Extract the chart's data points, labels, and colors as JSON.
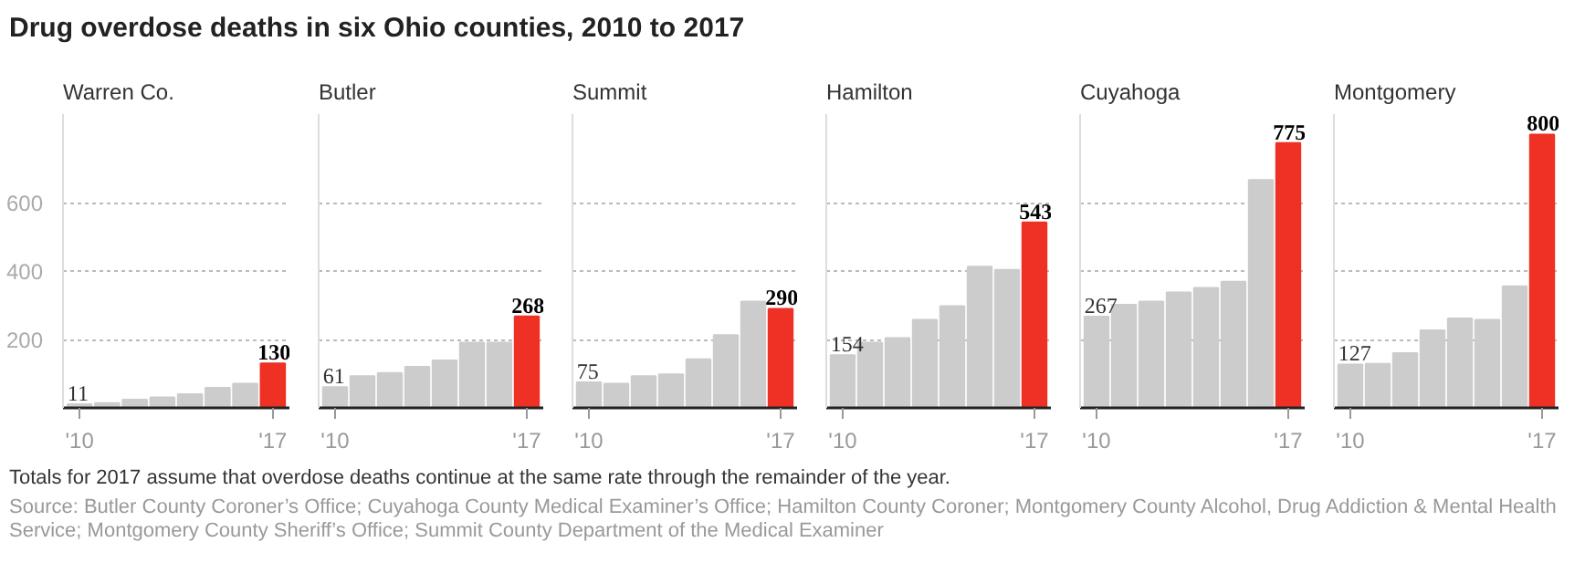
{
  "chart_data": [
    {
      "type": "bar",
      "title": "Drug overdose deaths in six Ohio counties, 2010 to 2017",
      "subtitle": "Warren Co.",
      "categories": [
        "'10",
        null,
        null,
        null,
        null,
        null,
        null,
        "'17"
      ],
      "values": [
        11,
        14,
        24,
        31,
        40,
        59,
        71,
        130
      ],
      "colors": [
        "#cccccc",
        "#cccccc",
        "#cccccc",
        "#cccccc",
        "#cccccc",
        "#cccccc",
        "#cccccc",
        "#ee3124"
      ],
      "value_labels": [
        "11",
        null,
        null,
        null,
        null,
        null,
        null,
        "130"
      ],
      "ylim": [
        0,
        860
      ],
      "yticks": [
        200,
        400,
        600
      ],
      "grid": "y",
      "annotations": [
        "Totals for 2017 assume that overdose deaths continue at the same rate through the remainder of the year.",
        "Source: Butler County Coroner’s Office; Cuyahoga County Medical Examiner’s Office; Hamilton County Coroner; Montgomery County Alcohol, Drug Addiction & Mental Health Service; Montgomery County Sheriff’s Office; Summit County Department of the Medical Examiner"
      ]
    },
    {
      "type": "bar",
      "subtitle": "Butler",
      "categories": [
        "'10",
        null,
        null,
        null,
        null,
        null,
        null,
        "'17"
      ],
      "values": [
        61,
        93,
        102,
        120,
        139,
        191,
        191,
        268
      ],
      "colors": [
        "#cccccc",
        "#cccccc",
        "#cccccc",
        "#cccccc",
        "#cccccc",
        "#cccccc",
        "#cccccc",
        "#ee3124"
      ],
      "value_labels": [
        "61",
        null,
        null,
        null,
        null,
        null,
        null,
        "268"
      ],
      "ylim": [
        0,
        860
      ],
      "yticks": [
        200,
        400,
        600
      ],
      "grid": "y",
      "tick_labels": "x"
    },
    {
      "type": "bar",
      "subtitle": "Summit",
      "categories": [
        "'10",
        null,
        null,
        null,
        null,
        null,
        null,
        "'17"
      ],
      "values": [
        75,
        71,
        93,
        98,
        142,
        213,
        311,
        290
      ],
      "colors": [
        "#cccccc",
        "#cccccc",
        "#cccccc",
        "#cccccc",
        "#cccccc",
        "#cccccc",
        "#cccccc",
        "#ee3124"
      ],
      "value_labels": [
        "75",
        null,
        null,
        null,
        null,
        null,
        null,
        "290"
      ],
      "ylim": [
        0,
        860
      ],
      "yticks": [
        200,
        400,
        600
      ],
      "grid": "y",
      "tick_labels": "x"
    },
    {
      "type": "bar",
      "subtitle": "Hamilton",
      "categories": [
        "'10",
        null,
        null,
        null,
        null,
        null,
        null,
        "'17"
      ],
      "values": [
        154,
        191,
        204,
        258,
        298,
        413,
        404,
        543
      ],
      "colors": [
        "#cccccc",
        "#cccccc",
        "#cccccc",
        "#cccccc",
        "#cccccc",
        "#cccccc",
        "#cccccc",
        "#ee3124"
      ],
      "value_labels": [
        "154",
        null,
        null,
        null,
        null,
        null,
        null,
        "543"
      ],
      "ylim": [
        0,
        860
      ],
      "yticks": [
        200,
        400,
        600
      ],
      "grid": "y",
      "tick_labels": "x"
    },
    {
      "type": "bar",
      "subtitle": "Cuyahoga",
      "categories": [
        "'10",
        null,
        null,
        null,
        null,
        null,
        null,
        "'17"
      ],
      "values": [
        267,
        302,
        311,
        338,
        351,
        369,
        667,
        775
      ],
      "colors": [
        "#cccccc",
        "#cccccc",
        "#cccccc",
        "#cccccc",
        "#cccccc",
        "#cccccc",
        "#cccccc",
        "#ee3124"
      ],
      "value_labels": [
        "267",
        null,
        null,
        null,
        null,
        null,
        null,
        "775"
      ],
      "ylim": [
        0,
        860
      ],
      "yticks": [
        200,
        400,
        600
      ],
      "grid": "y",
      "tick_labels": "x"
    },
    {
      "type": "bar",
      "subtitle": "Montgomery",
      "categories": [
        "'10",
        null,
        null,
        null,
        null,
        null,
        null,
        "'17"
      ],
      "values": [
        127,
        129,
        160,
        227,
        262,
        258,
        356,
        800
      ],
      "colors": [
        "#cccccc",
        "#cccccc",
        "#cccccc",
        "#cccccc",
        "#cccccc",
        "#cccccc",
        "#cccccc",
        "#ee3124"
      ],
      "value_labels": [
        "127",
        null,
        null,
        null,
        null,
        null,
        null,
        "800"
      ],
      "ylim": [
        0,
        860
      ],
      "yticks": [
        200,
        400,
        600
      ],
      "grid": "y",
      "tick_labels": "x"
    }
  ]
}
